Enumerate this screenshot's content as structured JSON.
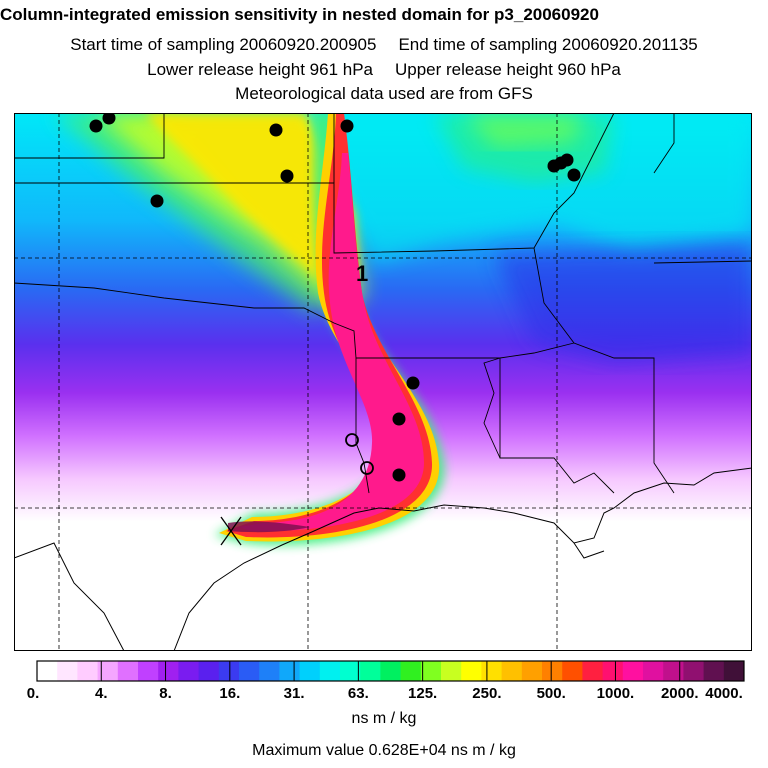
{
  "header": {
    "title": "Column-integrated emission sensitivity in nested domain for p3_20060920",
    "start_label": "Start time of sampling 20060920.200905",
    "end_label": "End time of sampling 20060920.201135",
    "lower_label": "Lower release height  961 hPa",
    "upper_label": "Upper release height  960 hPa",
    "met_label": "Meteorological data used are from GFS"
  },
  "map": {
    "plume_label": "1",
    "release_marker": "release-site-x",
    "colors": {
      "background_low": "#ffffff",
      "mid": "#00ffff",
      "high": "#ffff00",
      "peak": "#ff1a8c",
      "dot": "#000000"
    }
  },
  "colorbar": {
    "colors": [
      "#ffffff",
      "#ffe6ff",
      "#ffccff",
      "#f5a6ff",
      "#e070ff",
      "#c040ff",
      "#a020f0",
      "#7a1cf0",
      "#5a20ee",
      "#3b3bf0",
      "#2a5cf5",
      "#1e80f8",
      "#10a8fa",
      "#00d0fc",
      "#00f0f0",
      "#00ffd0",
      "#00ff9a",
      "#00f060",
      "#30f020",
      "#80ff20",
      "#c8ff20",
      "#ffff00",
      "#ffe000",
      "#ffc000",
      "#ffa000",
      "#ff8000",
      "#ff5000",
      "#ff2040",
      "#ff1070",
      "#ff10a0",
      "#e010a0",
      "#c0108c",
      "#901070",
      "#601050",
      "#401038"
    ],
    "ticks": [
      "0.",
      "4.",
      "8.",
      "16.",
      "31.",
      "63.",
      "125.",
      "250.",
      "500.",
      "1000.",
      "2000.",
      "4000."
    ],
    "units": "ns m / kg",
    "max_value": "Maximum value  0.628E+04 ns m / kg"
  }
}
